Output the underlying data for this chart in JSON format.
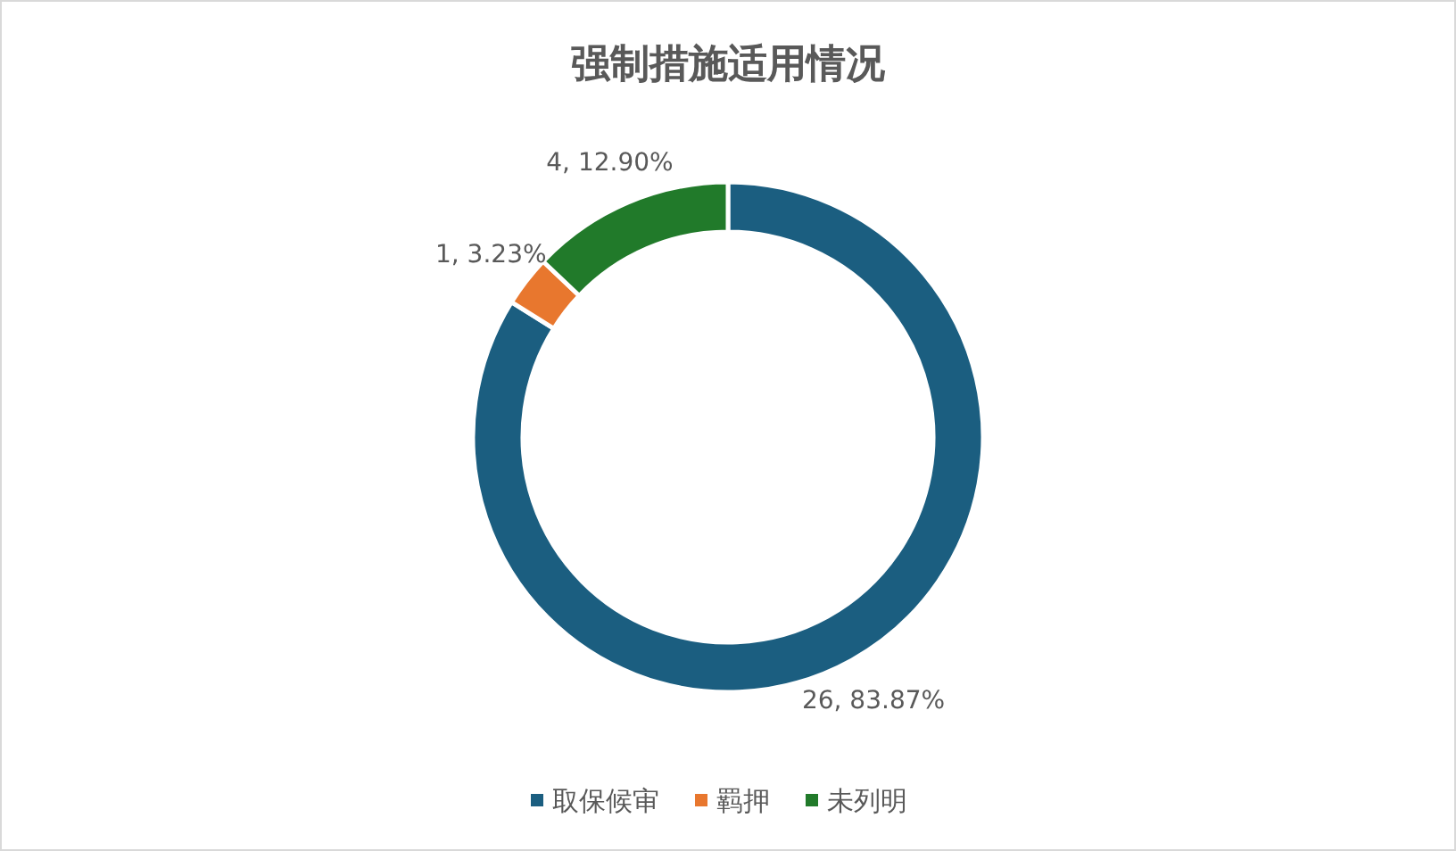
{
  "chart_data": {
    "type": "donut",
    "title": "强制措施适用情况",
    "categories": [
      "取保候审",
      "羁押",
      "未列明"
    ],
    "values": [
      26,
      1,
      4
    ],
    "colors": [
      "#1b5e80",
      "#e8772e",
      "#217a2a"
    ],
    "value_labels": [
      "26, 83.87%",
      "1, 3.23%",
      "4, 12.90%"
    ],
    "legend": "bottom"
  }
}
